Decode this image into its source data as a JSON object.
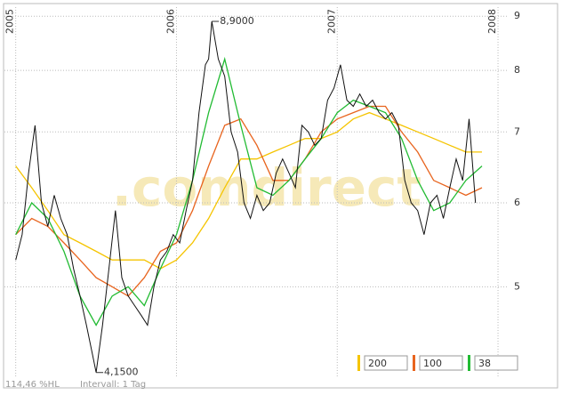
{
  "chart_data": {
    "type": "line",
    "log_scale": true,
    "grid": true,
    "watermark": ".comdirect",
    "footer": [
      "114,46 %HL",
      "Intervall: 1 Tag"
    ],
    "xlim": [
      2004.93,
      2008.055
    ],
    "xticks": [
      2005,
      2006,
      2007,
      2008
    ],
    "ylim": [
      4.1,
      9.18
    ],
    "yticks": [
      5,
      6,
      7,
      8,
      9
    ],
    "annotations": [
      {
        "text": "8,9000",
        "x": 2006.22,
        "y": 8.9
      },
      {
        "text": "4,1500",
        "x": 2005.5,
        "y": 4.15
      }
    ],
    "series": [
      {
        "color": "#111111",
        "x": [
          2005.0,
          2005.04,
          2005.08,
          2005.12,
          2005.16,
          2005.2,
          2005.24,
          2005.28,
          2005.32,
          2005.36,
          2005.4,
          2005.44,
          2005.48,
          2005.5,
          2005.54,
          2005.58,
          2005.62,
          2005.66,
          2005.7,
          2005.74,
          2005.78,
          2005.82,
          2005.86,
          2005.9,
          2005.94,
          2005.98,
          2006.02,
          2006.06,
          2006.1,
          2006.14,
          2006.18,
          2006.2,
          2006.22,
          2006.26,
          2006.3,
          2006.34,
          2006.38,
          2006.42,
          2006.46,
          2006.5,
          2006.54,
          2006.58,
          2006.62,
          2006.66,
          2006.7,
          2006.74,
          2006.78,
          2006.82,
          2006.86,
          2006.9,
          2006.94,
          2006.98,
          2007.02,
          2007.06,
          2007.1,
          2007.14,
          2007.18,
          2007.22,
          2007.26,
          2007.3,
          2007.34,
          2007.38,
          2007.42,
          2007.46,
          2007.5,
          2007.54,
          2007.58,
          2007.62,
          2007.66,
          2007.7,
          2007.74,
          2007.78,
          2007.82,
          2007.86
        ],
        "values": [
          5.3,
          5.6,
          6.4,
          7.1,
          6.0,
          5.7,
          6.1,
          5.8,
          5.6,
          5.2,
          4.9,
          4.6,
          4.3,
          4.15,
          4.6,
          5.2,
          5.9,
          5.1,
          4.9,
          4.8,
          4.7,
          4.6,
          5.0,
          5.3,
          5.4,
          5.6,
          5.5,
          5.9,
          6.3,
          7.3,
          8.1,
          8.2,
          8.9,
          8.2,
          7.9,
          7.0,
          6.7,
          6.0,
          5.8,
          6.1,
          5.9,
          6.0,
          6.4,
          6.6,
          6.4,
          6.2,
          7.1,
          7.0,
          6.8,
          6.9,
          7.5,
          7.7,
          8.1,
          7.5,
          7.4,
          7.6,
          7.4,
          7.5,
          7.3,
          7.2,
          7.3,
          7.1,
          6.3,
          6.0,
          5.9,
          5.6,
          6.0,
          6.1,
          5.8,
          6.2,
          6.6,
          6.3,
          7.2,
          6.0
        ]
      },
      {
        "name": "200",
        "color": "#f5c400",
        "x": [
          2005.0,
          2005.1,
          2005.2,
          2005.3,
          2005.4,
          2005.5,
          2005.6,
          2005.7,
          2005.8,
          2005.9,
          2006.0,
          2006.1,
          2006.2,
          2006.3,
          2006.4,
          2006.5,
          2006.6,
          2006.7,
          2006.8,
          2006.9,
          2007.0,
          2007.1,
          2007.2,
          2007.3,
          2007.4,
          2007.5,
          2007.6,
          2007.7,
          2007.8,
          2007.9
        ],
        "values": [
          6.5,
          6.2,
          5.9,
          5.6,
          5.5,
          5.4,
          5.3,
          5.3,
          5.3,
          5.2,
          5.3,
          5.5,
          5.8,
          6.2,
          6.6,
          6.6,
          6.7,
          6.8,
          6.9,
          6.9,
          7.0,
          7.2,
          7.3,
          7.2,
          7.1,
          7.0,
          6.9,
          6.8,
          6.7,
          6.7
        ]
      },
      {
        "name": "100",
        "color": "#e8641e",
        "x": [
          2005.0,
          2005.1,
          2005.2,
          2005.3,
          2005.4,
          2005.5,
          2005.6,
          2005.7,
          2005.8,
          2005.9,
          2006.0,
          2006.1,
          2006.2,
          2006.3,
          2006.4,
          2006.5,
          2006.6,
          2006.7,
          2006.8,
          2006.9,
          2007.0,
          2007.1,
          2007.2,
          2007.3,
          2007.4,
          2007.5,
          2007.6,
          2007.7,
          2007.8,
          2007.9
        ],
        "values": [
          5.6,
          5.8,
          5.7,
          5.5,
          5.3,
          5.1,
          5.0,
          4.9,
          5.1,
          5.4,
          5.5,
          5.9,
          6.5,
          7.1,
          7.2,
          6.8,
          6.3,
          6.3,
          6.6,
          7.0,
          7.2,
          7.3,
          7.4,
          7.4,
          7.0,
          6.7,
          6.3,
          6.2,
          6.1,
          6.2
        ]
      },
      {
        "name": "38",
        "color": "#22bb33",
        "x": [
          2005.0,
          2005.1,
          2005.2,
          2005.3,
          2005.4,
          2005.5,
          2005.6,
          2005.7,
          2005.8,
          2005.9,
          2006.0,
          2006.1,
          2006.2,
          2006.3,
          2006.4,
          2006.5,
          2006.6,
          2006.7,
          2006.8,
          2006.9,
          2007.0,
          2007.1,
          2007.2,
          2007.3,
          2007.4,
          2007.5,
          2007.6,
          2007.7,
          2007.8,
          2007.9
        ],
        "values": [
          5.6,
          6.0,
          5.8,
          5.4,
          4.9,
          4.6,
          4.9,
          5.0,
          4.8,
          5.2,
          5.6,
          6.3,
          7.3,
          8.2,
          7.1,
          6.2,
          6.1,
          6.3,
          6.6,
          6.9,
          7.3,
          7.5,
          7.4,
          7.3,
          6.9,
          6.3,
          5.9,
          6.0,
          6.3,
          6.5
        ]
      }
    ]
  }
}
